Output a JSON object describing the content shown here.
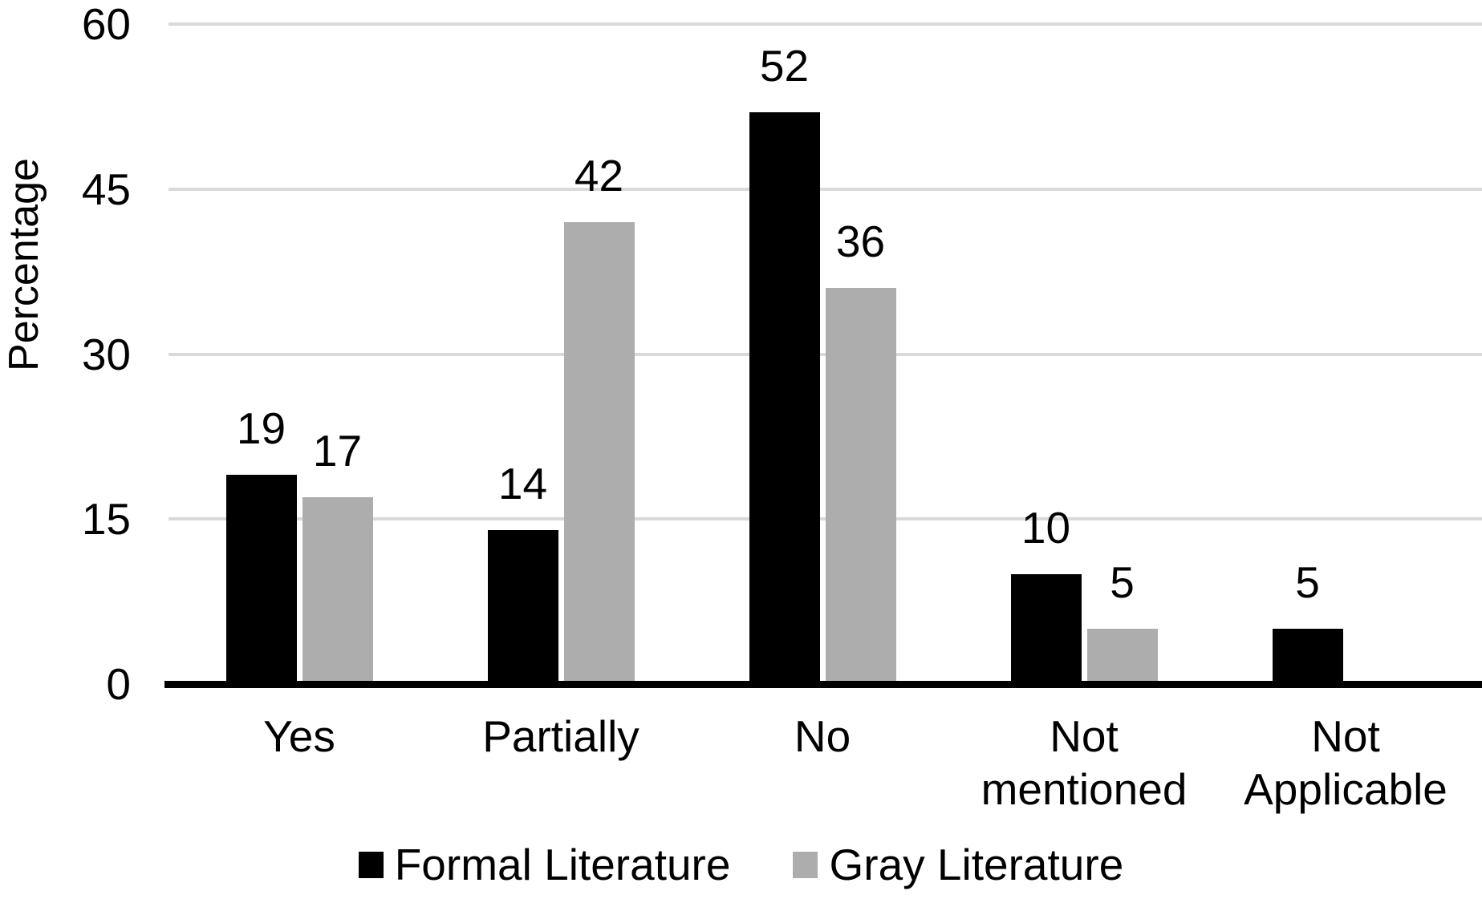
{
  "chart_data": {
    "type": "bar",
    "title": "",
    "xlabel": "",
    "ylabel": "Percentage",
    "categories": [
      "Yes",
      "Partially",
      "No",
      "Not\nmentioned",
      "Not\nApplicable"
    ],
    "series": [
      {
        "name": "Formal Literature",
        "color": "#000000",
        "values": [
          19,
          14,
          52,
          10,
          5
        ]
      },
      {
        "name": "Gray Literature",
        "color": "#ADADAD",
        "values": [
          17,
          42,
          36,
          5,
          null
        ]
      }
    ],
    "ylim": [
      0,
      60
    ],
    "yticks": [
      0,
      15,
      30,
      45,
      60
    ],
    "grid": true,
    "gridline_color": "#D9D9D9",
    "axis_line_color": "#000000",
    "data_labels_shown": true,
    "legend_position": "bottom"
  }
}
